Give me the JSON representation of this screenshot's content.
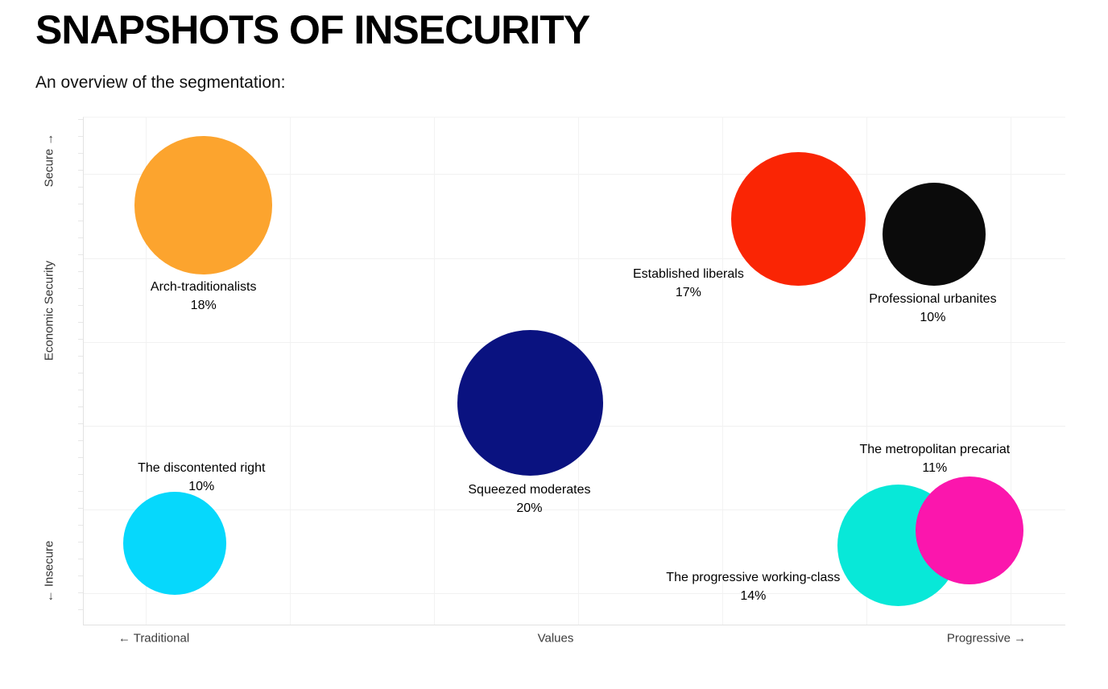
{
  "page": {
    "title": "SNAPSHOTS OF INSECURITY",
    "subtitle": "An overview of the segmentation:"
  },
  "chart_data": {
    "type": "scatter",
    "variant": "bubble",
    "title": "SNAPSHOTS OF INSECURITY",
    "subtitle": "An overview of the segmentation:",
    "grid": true,
    "x_axis": {
      "title": "Values",
      "min_label": "← Traditional",
      "max_label": "Progressive →",
      "range": [
        0,
        1
      ]
    },
    "y_axis": {
      "title": "Economic Security",
      "min_label": "← Insecure",
      "max_label": "Secure →",
      "range": [
        0,
        1
      ]
    },
    "size_encoding": "percent",
    "points": [
      {
        "id": "arch-traditionalists",
        "label": "Arch-traditionalists",
        "percent": 18,
        "percent_label": "18%",
        "x": 0.122,
        "y": 0.827,
        "color": "#FCA42E",
        "label_pos": {
          "x": 0.122,
          "y": 0.316
        }
      },
      {
        "id": "established-liberals",
        "label": "Established liberals",
        "percent": 17,
        "percent_label": "17%",
        "x": 0.728,
        "y": 0.8,
        "color": "#FA2504",
        "label_pos": {
          "x": 0.616,
          "y": 0.29
        }
      },
      {
        "id": "professional-urbanites",
        "label": "Professional urbanites",
        "percent": 10,
        "percent_label": "10%",
        "x": 0.866,
        "y": 0.77,
        "color": "#0B0B0B",
        "label_pos": {
          "x": 0.865,
          "y": 0.34
        }
      },
      {
        "id": "squeezed-moderates",
        "label": "Squeezed moderates",
        "percent": 20,
        "percent_label": "20%",
        "x": 0.455,
        "y": 0.437,
        "color": "#0A1280",
        "label_pos": {
          "x": 0.454,
          "y": 0.716
        }
      },
      {
        "id": "the-discontented-right",
        "label": "The discontented right",
        "percent": 10,
        "percent_label": "10%",
        "x": 0.093,
        "y": 0.16,
        "color": "#06D8FC",
        "label_pos": {
          "x": 0.12,
          "y": 0.673
        }
      },
      {
        "id": "the-progressive-working-class",
        "label": "The progressive working-class",
        "percent": 14,
        "percent_label": "14%",
        "x": 0.83,
        "y": 0.156,
        "color": "#08E8D8",
        "label_pos": {
          "x": 0.682,
          "y": 0.889
        }
      },
      {
        "id": "the-metropolitan-precariat",
        "label": "The metropolitan precariat",
        "percent": 11,
        "percent_label": "11%",
        "x": 0.902,
        "y": 0.186,
        "color": "#FB16AD",
        "label_pos": {
          "x": 0.867,
          "y": 0.637
        }
      }
    ]
  }
}
